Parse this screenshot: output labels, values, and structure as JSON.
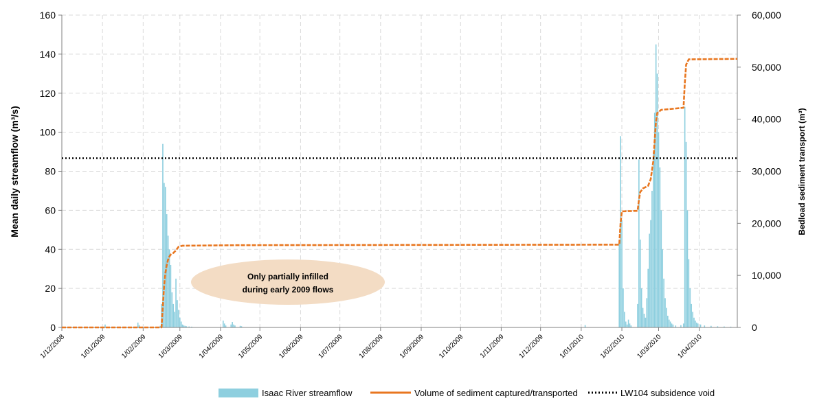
{
  "chart_data": {
    "type": "bar",
    "ylabel": "Mean daily streamflow (m³/s)",
    "y2label": "Bedload sediment transport (m³)",
    "ylim": [
      0,
      160
    ],
    "y2lim": [
      0,
      60000
    ],
    "yticks": [
      "0",
      "20",
      "40",
      "60",
      "80",
      "100",
      "120",
      "140",
      "160"
    ],
    "y2ticks": [
      "0",
      "10,000",
      "20,000",
      "30,000",
      "40,000",
      "50,000",
      "60,000"
    ],
    "x_start_date": "2008-12-01",
    "x_end_date": "2010-04-30",
    "xticks": [
      {
        "date": "2008-12-01",
        "label": "1/12/2008"
      },
      {
        "date": "2009-01-01",
        "label": "1/01/2009"
      },
      {
        "date": "2009-02-01",
        "label": "1/02/2009"
      },
      {
        "date": "2009-03-01",
        "label": "1/03/2009"
      },
      {
        "date": "2009-04-01",
        "label": "1/04/2009"
      },
      {
        "date": "2009-05-01",
        "label": "1/05/2009"
      },
      {
        "date": "2009-06-01",
        "label": "1/06/2009"
      },
      {
        "date": "2009-07-01",
        "label": "1/07/2009"
      },
      {
        "date": "2009-08-01",
        "label": "1/08/2009"
      },
      {
        "date": "2009-09-01",
        "label": "1/09/2009"
      },
      {
        "date": "2009-10-01",
        "label": "1/10/2009"
      },
      {
        "date": "2009-11-01",
        "label": "1/11/2009"
      },
      {
        "date": "2009-12-01",
        "label": "1/12/2009"
      },
      {
        "date": "2010-01-01",
        "label": "1/01/2010"
      },
      {
        "date": "2010-02-01",
        "label": "1/02/2010"
      },
      {
        "date": "2010-03-01",
        "label": "1/03/2010"
      },
      {
        "date": "2010-04-01",
        "label": "1/04/2010"
      }
    ],
    "grid": true,
    "legend_position": "bottom",
    "series": [
      {
        "name": "Isaac River streamflow",
        "type": "bar",
        "axis": "left",
        "color": "#8ecfdf",
        "points": [
          {
            "date": "2009-01-28",
            "value": 2.5
          },
          {
            "date": "2009-01-29",
            "value": 1.2
          },
          {
            "date": "2009-02-14",
            "value": 0.8
          },
          {
            "date": "2009-02-15",
            "value": 12
          },
          {
            "date": "2009-02-16",
            "value": 94
          },
          {
            "date": "2009-02-17",
            "value": 74
          },
          {
            "date": "2009-02-18",
            "value": 72
          },
          {
            "date": "2009-02-19",
            "value": 58
          },
          {
            "date": "2009-02-20",
            "value": 47
          },
          {
            "date": "2009-02-21",
            "value": 40
          },
          {
            "date": "2009-02-22",
            "value": 32
          },
          {
            "date": "2009-02-23",
            "value": 18
          },
          {
            "date": "2009-02-24",
            "value": 12
          },
          {
            "date": "2009-02-25",
            "value": 8
          },
          {
            "date": "2009-02-26",
            "value": 25
          },
          {
            "date": "2009-02-27",
            "value": 14
          },
          {
            "date": "2009-02-28",
            "value": 9
          },
          {
            "date": "2009-03-01",
            "value": 5
          },
          {
            "date": "2009-03-02",
            "value": 3
          },
          {
            "date": "2009-03-03",
            "value": 1.5
          },
          {
            "date": "2009-03-04",
            "value": 1
          },
          {
            "date": "2009-03-05",
            "value": 0.8
          },
          {
            "date": "2009-03-06",
            "value": 0.6
          },
          {
            "date": "2009-03-08",
            "value": 0.5
          },
          {
            "date": "2009-03-10",
            "value": 0.4
          },
          {
            "date": "2009-04-03",
            "value": 3.5
          },
          {
            "date": "2009-04-04",
            "value": 2
          },
          {
            "date": "2009-04-05",
            "value": 1
          },
          {
            "date": "2009-04-09",
            "value": 1.5
          },
          {
            "date": "2009-04-10",
            "value": 2.8
          },
          {
            "date": "2009-04-11",
            "value": 1.5
          },
          {
            "date": "2009-04-12",
            "value": 1
          },
          {
            "date": "2009-04-16",
            "value": 0.8
          },
          {
            "date": "2009-04-17",
            "value": 0.6
          },
          {
            "date": "2009-01-03",
            "value": 1.5
          },
          {
            "date": "2010-01-04",
            "value": 1.2
          },
          {
            "date": "2010-01-30",
            "value": 45
          },
          {
            "date": "2010-01-31",
            "value": 98
          },
          {
            "date": "2010-02-01",
            "value": 55
          },
          {
            "date": "2010-02-02",
            "value": 20
          },
          {
            "date": "2010-02-03",
            "value": 8
          },
          {
            "date": "2010-02-04",
            "value": 3
          },
          {
            "date": "2010-02-05",
            "value": 1.5
          },
          {
            "date": "2010-02-06",
            "value": 4
          },
          {
            "date": "2010-02-07",
            "value": 2
          },
          {
            "date": "2010-02-08",
            "value": 1
          },
          {
            "date": "2010-02-13",
            "value": 12
          },
          {
            "date": "2010-02-14",
            "value": 86
          },
          {
            "date": "2010-02-15",
            "value": 45
          },
          {
            "date": "2010-02-16",
            "value": 20
          },
          {
            "date": "2010-02-17",
            "value": 10
          },
          {
            "date": "2010-02-18",
            "value": 7
          },
          {
            "date": "2010-02-19",
            "value": 5
          },
          {
            "date": "2010-02-20",
            "value": 15
          },
          {
            "date": "2010-02-21",
            "value": 30
          },
          {
            "date": "2010-02-22",
            "value": 48
          },
          {
            "date": "2010-02-23",
            "value": 55
          },
          {
            "date": "2010-02-24",
            "value": 70
          },
          {
            "date": "2010-02-25",
            "value": 90
          },
          {
            "date": "2010-02-26",
            "value": 110
          },
          {
            "date": "2010-02-27",
            "value": 145
          },
          {
            "date": "2010-02-28",
            "value": 130
          },
          {
            "date": "2010-03-01",
            "value": 100
          },
          {
            "date": "2010-03-02",
            "value": 82
          },
          {
            "date": "2010-03-03",
            "value": 60
          },
          {
            "date": "2010-03-04",
            "value": 40
          },
          {
            "date": "2010-03-05",
            "value": 25
          },
          {
            "date": "2010-03-06",
            "value": 15
          },
          {
            "date": "2010-03-07",
            "value": 10
          },
          {
            "date": "2010-03-08",
            "value": 6
          },
          {
            "date": "2010-03-09",
            "value": 4
          },
          {
            "date": "2010-03-10",
            "value": 3
          },
          {
            "date": "2010-03-11",
            "value": 2
          },
          {
            "date": "2010-03-12",
            "value": 1.5
          },
          {
            "date": "2010-03-14",
            "value": 1
          },
          {
            "date": "2010-03-18",
            "value": 1.2
          },
          {
            "date": "2010-03-20",
            "value": 2
          },
          {
            "date": "2010-03-21",
            "value": 113
          },
          {
            "date": "2010-03-22",
            "value": 95
          },
          {
            "date": "2010-03-23",
            "value": 60
          },
          {
            "date": "2010-03-24",
            "value": 35
          },
          {
            "date": "2010-03-25",
            "value": 20
          },
          {
            "date": "2010-03-26",
            "value": 12
          },
          {
            "date": "2010-03-27",
            "value": 8
          },
          {
            "date": "2010-03-28",
            "value": 5
          },
          {
            "date": "2010-03-29",
            "value": 3.5
          },
          {
            "date": "2010-03-30",
            "value": 2.5
          },
          {
            "date": "2010-03-31",
            "value": 2
          },
          {
            "date": "2010-04-02",
            "value": 1.5
          },
          {
            "date": "2010-04-05",
            "value": 1
          },
          {
            "date": "2010-04-10",
            "value": 0.8
          },
          {
            "date": "2010-04-15",
            "value": 0.6
          },
          {
            "date": "2010-04-20",
            "value": 0.5
          },
          {
            "date": "2010-04-25",
            "value": 0.4
          }
        ]
      },
      {
        "name": "Volume of sediment captured/transported",
        "type": "line",
        "axis": "right",
        "color": "#e8761f",
        "points": [
          {
            "date": "2008-12-01",
            "value": 0
          },
          {
            "date": "2009-02-15",
            "value": 0
          },
          {
            "date": "2009-02-16",
            "value": 4000
          },
          {
            "date": "2009-02-17",
            "value": 8000
          },
          {
            "date": "2009-02-18",
            "value": 10500
          },
          {
            "date": "2009-02-19",
            "value": 12000
          },
          {
            "date": "2009-02-20",
            "value": 13000
          },
          {
            "date": "2009-02-21",
            "value": 13600
          },
          {
            "date": "2009-02-22",
            "value": 14000
          },
          {
            "date": "2009-02-24",
            "value": 14300
          },
          {
            "date": "2009-02-26",
            "value": 14800
          },
          {
            "date": "2009-02-28",
            "value": 15500
          },
          {
            "date": "2009-03-03",
            "value": 15700
          },
          {
            "date": "2009-04-15",
            "value": 15800
          },
          {
            "date": "2010-01-30",
            "value": 15900
          },
          {
            "date": "2010-01-31",
            "value": 20000
          },
          {
            "date": "2010-02-01",
            "value": 22300
          },
          {
            "date": "2010-02-13",
            "value": 22400
          },
          {
            "date": "2010-02-14",
            "value": 24500
          },
          {
            "date": "2010-02-15",
            "value": 26000
          },
          {
            "date": "2010-02-17",
            "value": 26700
          },
          {
            "date": "2010-02-21",
            "value": 27200
          },
          {
            "date": "2010-02-23",
            "value": 28500
          },
          {
            "date": "2010-02-25",
            "value": 32000
          },
          {
            "date": "2010-02-26",
            "value": 36000
          },
          {
            "date": "2010-02-27",
            "value": 39500
          },
          {
            "date": "2010-02-28",
            "value": 41200
          },
          {
            "date": "2010-03-03",
            "value": 41800
          },
          {
            "date": "2010-03-20",
            "value": 42200
          },
          {
            "date": "2010-03-21",
            "value": 47000
          },
          {
            "date": "2010-03-22",
            "value": 50500
          },
          {
            "date": "2010-03-24",
            "value": 51500
          },
          {
            "date": "2010-04-30",
            "value": 51600
          }
        ]
      },
      {
        "name": "LW104 subsidence void",
        "type": "line",
        "style": "dotted",
        "axis": "right",
        "color": "#000000",
        "value": 32500
      }
    ],
    "annotations": [
      {
        "text_lines": [
          "Only partially infilled",
          "during early 2009 flows"
        ],
        "fill": "#f3dcc4"
      }
    ]
  }
}
